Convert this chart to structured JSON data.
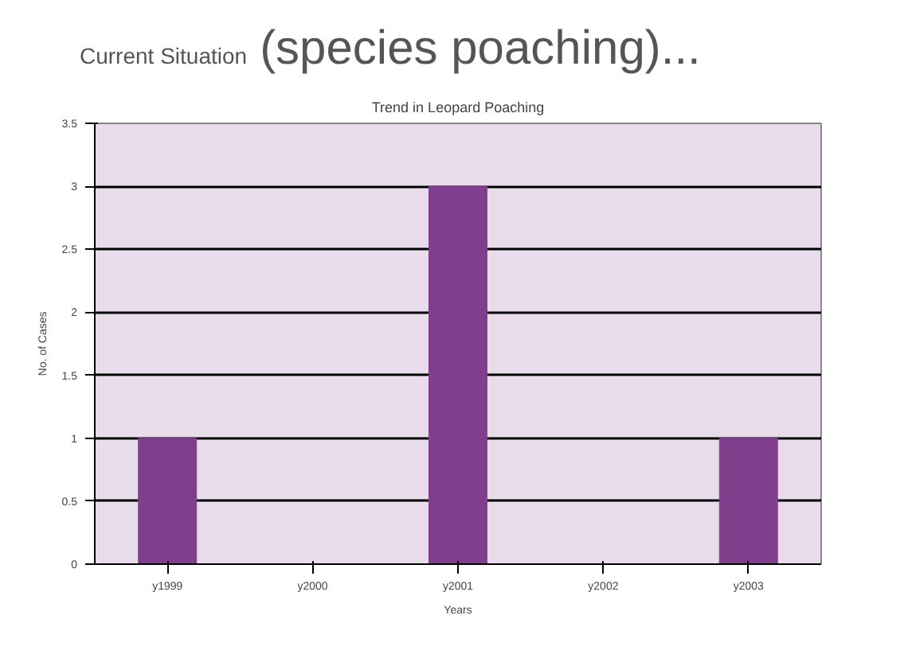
{
  "chart_data": {
    "type": "bar",
    "title": "Trend in Leopard Poaching",
    "annotations": [
      "Current Situation",
      "(species poaching)..."
    ],
    "xlabel": "Years",
    "ylabel": "No. of Cases",
    "categories": [
      "y1999",
      "y2000",
      "y2001",
      "y2002",
      "y2003"
    ],
    "values": [
      1,
      0,
      3,
      0,
      1
    ],
    "color": "#7f3f8c",
    "ylim": [
      0,
      3.5
    ],
    "yticks": [
      0,
      0.5,
      1,
      1.5,
      2,
      2.5,
      3,
      3.5
    ],
    "grid": "y"
  }
}
